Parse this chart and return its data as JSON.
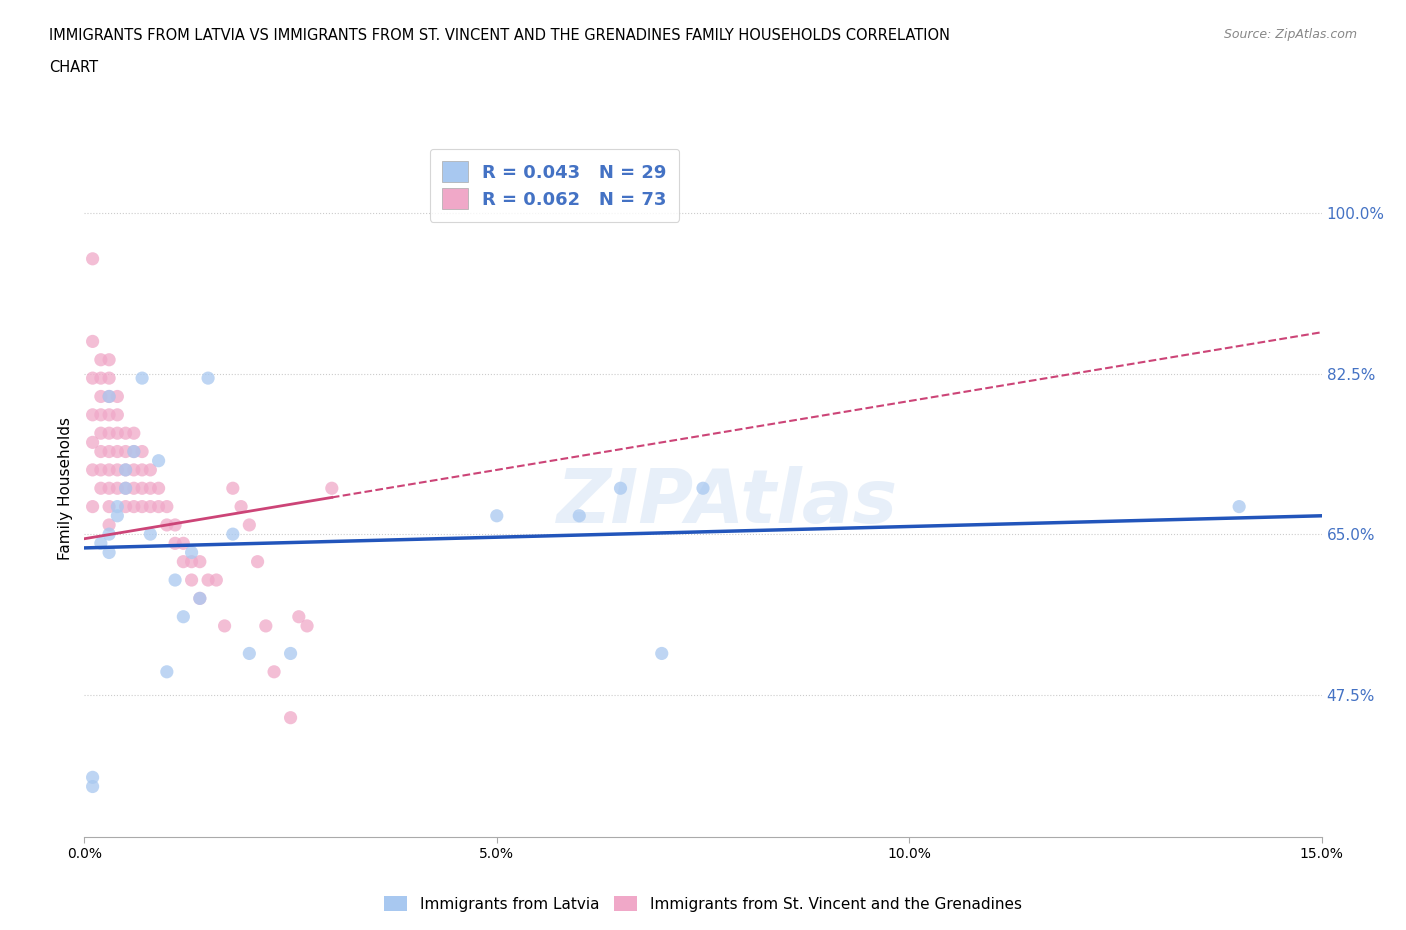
{
  "title_line1": "IMMIGRANTS FROM LATVIA VS IMMIGRANTS FROM ST. VINCENT AND THE GRENADINES FAMILY HOUSEHOLDS CORRELATION",
  "title_line2": "CHART",
  "source": "Source: ZipAtlas.com",
  "ylabel": "Family Households",
  "ytick_values": [
    1.0,
    0.825,
    0.65,
    0.475
  ],
  "ytick_labels": [
    "100.0%",
    "82.5%",
    "65.0%",
    "47.5%"
  ],
  "xmin": 0.0,
  "xmax": 0.15,
  "ymin": 0.32,
  "ymax": 1.08,
  "watermark": "ZIPAtlas",
  "legend_R1": "R = 0.043",
  "legend_N1": "N = 29",
  "legend_R2": "R = 0.062",
  "legend_N2": "N = 73",
  "color_latvia": "#a8c8f0",
  "color_svg": "#f0a8c8",
  "line_color_latvia": "#2255bb",
  "line_color_svg": "#cc4477",
  "scatter_alpha": 0.75,
  "scatter_size": 90,
  "latvia_x": [
    0.001,
    0.001,
    0.002,
    0.003,
    0.003,
    0.003,
    0.004,
    0.004,
    0.005,
    0.005,
    0.006,
    0.007,
    0.008,
    0.009,
    0.01,
    0.011,
    0.012,
    0.013,
    0.014,
    0.015,
    0.018,
    0.02,
    0.025,
    0.06,
    0.065,
    0.07,
    0.075,
    0.14,
    0.05
  ],
  "latvia_y": [
    0.375,
    0.385,
    0.64,
    0.63,
    0.65,
    0.8,
    0.67,
    0.68,
    0.72,
    0.7,
    0.74,
    0.82,
    0.65,
    0.73,
    0.5,
    0.6,
    0.56,
    0.63,
    0.58,
    0.82,
    0.65,
    0.52,
    0.52,
    0.67,
    0.7,
    0.52,
    0.7,
    0.68,
    0.67
  ],
  "svg_x": [
    0.001,
    0.001,
    0.001,
    0.001,
    0.001,
    0.001,
    0.001,
    0.002,
    0.002,
    0.002,
    0.002,
    0.002,
    0.002,
    0.002,
    0.002,
    0.003,
    0.003,
    0.003,
    0.003,
    0.003,
    0.003,
    0.003,
    0.003,
    0.003,
    0.003,
    0.004,
    0.004,
    0.004,
    0.004,
    0.004,
    0.004,
    0.005,
    0.005,
    0.005,
    0.005,
    0.005,
    0.006,
    0.006,
    0.006,
    0.006,
    0.006,
    0.007,
    0.007,
    0.007,
    0.007,
    0.008,
    0.008,
    0.008,
    0.009,
    0.009,
    0.01,
    0.01,
    0.011,
    0.011,
    0.012,
    0.012,
    0.013,
    0.013,
    0.014,
    0.014,
    0.015,
    0.016,
    0.017,
    0.018,
    0.019,
    0.02,
    0.021,
    0.022,
    0.023,
    0.025,
    0.026,
    0.027,
    0.03
  ],
  "svg_y": [
    0.95,
    0.86,
    0.82,
    0.78,
    0.75,
    0.72,
    0.68,
    0.84,
    0.82,
    0.8,
    0.78,
    0.76,
    0.74,
    0.72,
    0.7,
    0.84,
    0.82,
    0.8,
    0.78,
    0.76,
    0.74,
    0.72,
    0.7,
    0.68,
    0.66,
    0.8,
    0.78,
    0.76,
    0.74,
    0.72,
    0.7,
    0.76,
    0.74,
    0.72,
    0.7,
    0.68,
    0.76,
    0.74,
    0.72,
    0.7,
    0.68,
    0.74,
    0.72,
    0.7,
    0.68,
    0.72,
    0.7,
    0.68,
    0.7,
    0.68,
    0.68,
    0.66,
    0.66,
    0.64,
    0.64,
    0.62,
    0.62,
    0.6,
    0.62,
    0.58,
    0.6,
    0.6,
    0.55,
    0.7,
    0.68,
    0.66,
    0.62,
    0.55,
    0.5,
    0.45,
    0.56,
    0.55,
    0.7
  ],
  "svg_line_solid_xmax": 0.03,
  "latvia_line_y_at_0": 0.635,
  "latvia_line_y_at_015": 0.67,
  "svg_line_y_at_0": 0.645,
  "svg_line_y_at_015": 0.87
}
